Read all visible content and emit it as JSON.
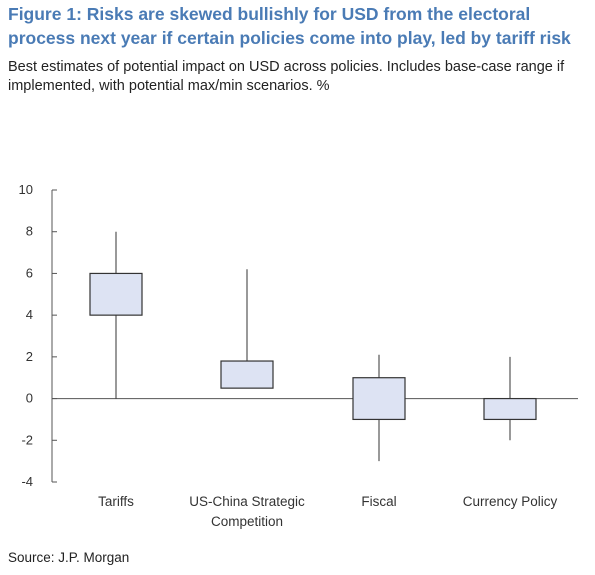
{
  "title": "Figure 1: Risks are skewed bullishly for USD from the electoral process next year if certain policies come into play, led by tariff risk",
  "subtitle": "Best estimates of potential impact on USD across policies. Includes base-case range if implemented, with potential max/min scenarios. %",
  "source": "Source: J.P. Morgan",
  "colors": {
    "box_fill": "#dde3f3",
    "box_stroke": "#333333",
    "axis": "#555555",
    "title": "#4a7bb5"
  },
  "chart_data": {
    "type": "box",
    "categories": [
      [
        "Tariffs"
      ],
      [
        "US-China Strategic",
        "Competition"
      ],
      [
        "Fiscal"
      ],
      [
        "Currency Policy"
      ]
    ],
    "boxes": [
      {
        "min": 0,
        "q1": 4,
        "q3": 6,
        "max": 8
      },
      {
        "min": 0.5,
        "q1": 0.5,
        "q3": 1.8,
        "max": 6.2
      },
      {
        "min": -3,
        "q1": -1,
        "q3": 1,
        "max": 2.1
      },
      {
        "min": -2,
        "q1": -1,
        "q3": 0,
        "max": 2
      }
    ],
    "ylim": [
      -4,
      10
    ],
    "yticks": [
      10,
      8,
      6,
      4,
      2,
      0,
      -2,
      -4
    ],
    "grid": false
  }
}
